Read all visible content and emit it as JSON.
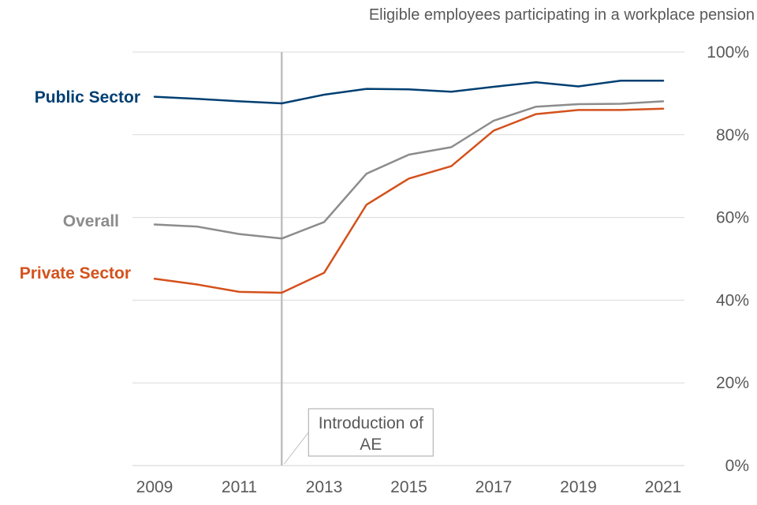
{
  "chart_data": {
    "type": "line",
    "title": "Eligible employees participating in a workplace pension",
    "x": [
      2009,
      2010,
      2011,
      2012,
      2013,
      2014,
      2015,
      2016,
      2017,
      2018,
      2019,
      2020,
      2021
    ],
    "x_tick_labels": [
      "2009",
      "2011",
      "2013",
      "2015",
      "2017",
      "2019",
      "2021"
    ],
    "y_tick_labels": [
      "100%",
      "80%",
      "60%",
      "40%",
      "20%",
      "0%"
    ],
    "ylim": [
      0,
      100
    ],
    "y_unit": "%",
    "grid": true,
    "y_axis_position": "right",
    "series": [
      {
        "name": "Public Sector",
        "color": "#003f72",
        "values": [
          89.2,
          88.7,
          88.1,
          87.6,
          89.7,
          91.1,
          91.0,
          90.4,
          91.6,
          92.7,
          91.7,
          93.1,
          93.1
        ]
      },
      {
        "name": "Overall",
        "color": "#8c8c8c",
        "values": [
          58.3,
          57.8,
          56.0,
          54.9,
          58.9,
          70.6,
          75.2,
          77.0,
          83.4,
          86.8,
          87.4,
          87.5,
          88.1
        ]
      },
      {
        "name": "Private Sector",
        "color": "#d4511c",
        "values": [
          45.2,
          43.8,
          42.0,
          41.8,
          46.6,
          63.1,
          69.4,
          72.4,
          81.0,
          85.0,
          86.0,
          86.0,
          86.3
        ]
      }
    ],
    "annotation": {
      "text_line1": "Introduction of",
      "text_line2": "AE",
      "x": 2012
    }
  }
}
